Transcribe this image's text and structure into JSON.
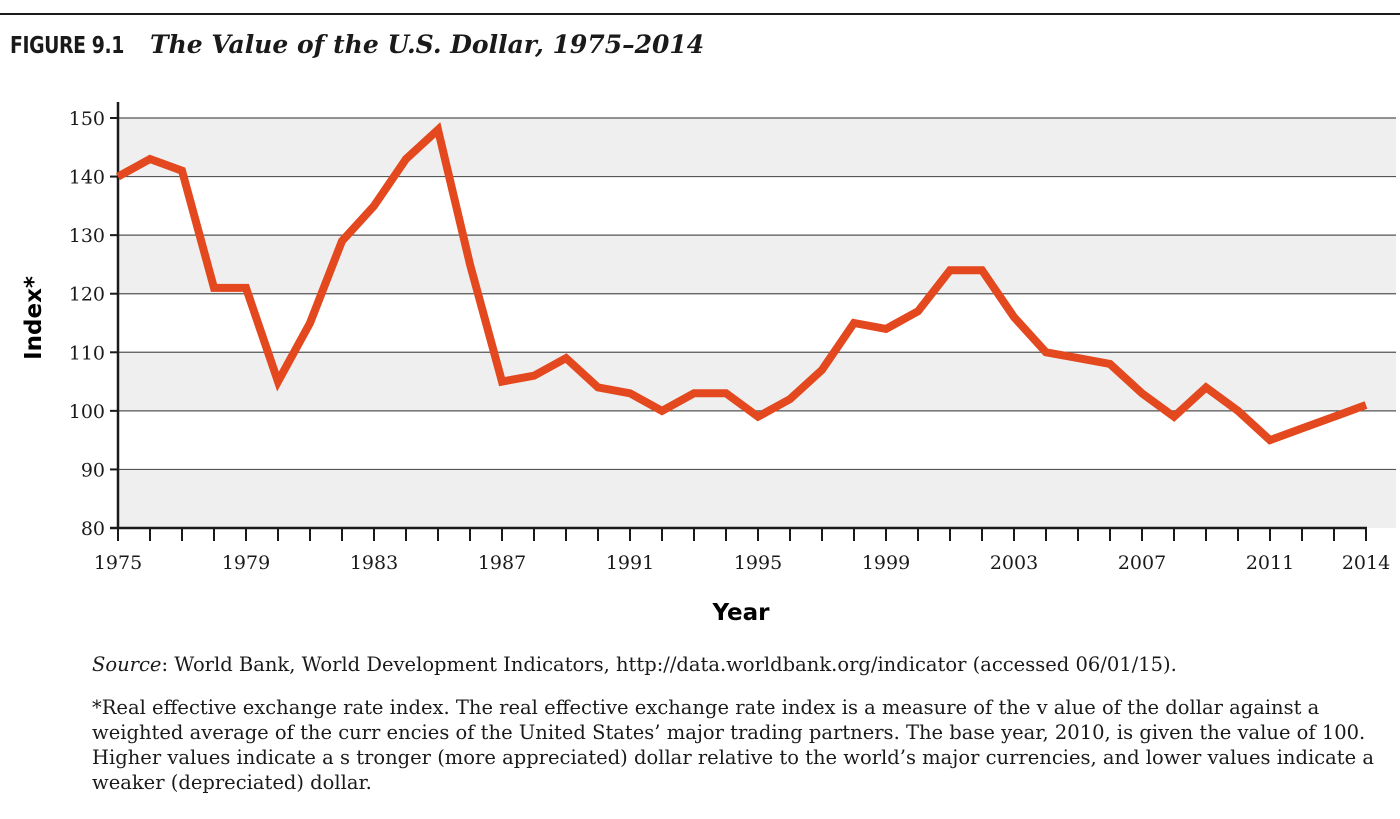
{
  "figure": {
    "label": "FIGURE 9.1",
    "title": "The Value of the U.S. Dollar, 1975–2014"
  },
  "source": {
    "label": "Source",
    "text": ": World Bank, World Development Indicators, http://data.worldbank.org/indicator (accessed 06/01/15)."
  },
  "footnote": "*Real effective exchange rate index. The real effective exchange rate index is a measure of the v alue of the dollar against a weighted average of the curr encies of the United States’ major trading partners. The base year, 2010, is given the value of 100. Higher values indicate a s tronger (more appreciated) dollar relative to the world’s major currencies, and lower values indicate a weaker (depreciated) dollar.",
  "colors": {
    "line": "#e4481e",
    "band": "#efefef",
    "grid": "#555555",
    "axis": "#1a1a1a"
  },
  "chart_data": {
    "type": "line",
    "title": "The Value of the U.S. Dollar, 1975–2014",
    "xlabel": "Year",
    "ylabel": "Index*",
    "xlim": [
      1975,
      2014
    ],
    "ylim": [
      80,
      150
    ],
    "yticks": [
      80,
      90,
      100,
      110,
      120,
      130,
      140,
      150
    ],
    "xtick_labels": [
      1975,
      1979,
      1983,
      1987,
      1991,
      1995,
      1999,
      2003,
      2007,
      2011,
      2014
    ],
    "grid": "horizontal",
    "shaded_bands": true,
    "legend": "none",
    "x": [
      1975,
      1976,
      1977,
      1978,
      1979,
      1980,
      1981,
      1982,
      1983,
      1984,
      1985,
      1986,
      1987,
      1988,
      1989,
      1990,
      1991,
      1992,
      1993,
      1994,
      1995,
      1996,
      1997,
      1998,
      1999,
      2000,
      2001,
      2002,
      2003,
      2004,
      2005,
      2006,
      2007,
      2008,
      2009,
      2010,
      2011,
      2012,
      2013,
      2014
    ],
    "values": [
      140,
      143,
      141,
      121,
      121,
      105,
      115,
      129,
      135,
      143,
      148,
      125,
      105,
      106,
      109,
      104,
      103,
      100,
      103,
      103,
      99,
      102,
      107,
      115,
      114,
      117,
      124,
      124,
      116,
      110,
      109,
      108,
      103,
      99,
      104,
      100,
      95,
      97,
      99,
      101
    ]
  }
}
